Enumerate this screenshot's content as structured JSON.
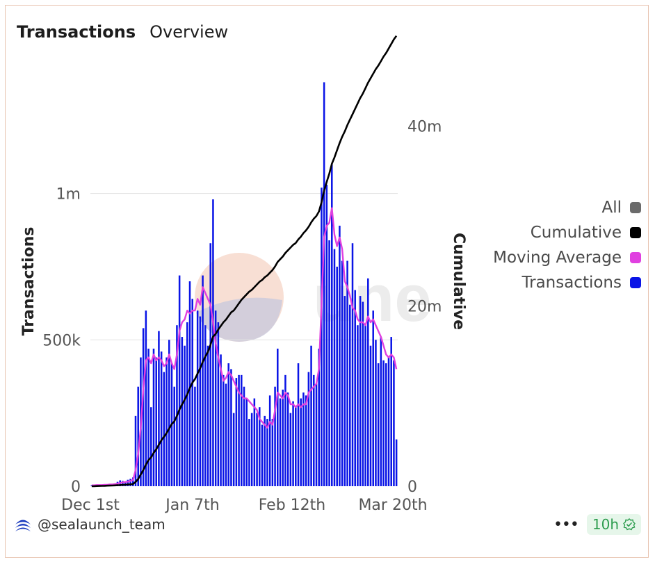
{
  "header": {
    "title": "Transactions",
    "subtitle": "Overview"
  },
  "legend": [
    {
      "label": "All",
      "color": "#6b6b6b"
    },
    {
      "label": "Cumulative",
      "color": "#000000"
    },
    {
      "label": "Moving Average",
      "color": "#e040e0"
    },
    {
      "label": "Transactions",
      "color": "#0a14e6"
    }
  ],
  "footer": {
    "author": "@sealaunch_team",
    "more_label": "•••",
    "age_label": "10h",
    "age_color": "#2e9d4f"
  },
  "watermark": "Dune",
  "chart_data": {
    "type": "bar",
    "title": "Transactions",
    "x_tick_labels": [
      "Dec 1st",
      "Jan 7th",
      "Feb 12th",
      "Mar 20th"
    ],
    "ylabel": "Transactions",
    "y2label": "Cumulative",
    "ylim": [
      0,
      1400000
    ],
    "y2lim": [
      0,
      45500000
    ],
    "y_ticks": [
      {
        "value": 0,
        "label": "0"
      },
      {
        "value": 500000,
        "label": "500k"
      },
      {
        "value": 1000000,
        "label": "1m"
      }
    ],
    "y2_ticks": [
      {
        "value": 0,
        "label": "0"
      },
      {
        "value": 20000000,
        "label": "20m"
      },
      {
        "value": 40000000,
        "label": "40m"
      }
    ],
    "grid": true,
    "legend_position": "right",
    "series": [
      {
        "name": "Transactions",
        "kind": "bar",
        "color": "#0a14e6",
        "values": [
          3000,
          3000,
          4000,
          5000,
          5000,
          6000,
          6000,
          7000,
          7000,
          8000,
          15000,
          20000,
          18000,
          15000,
          22000,
          25000,
          30000,
          240000,
          340000,
          440000,
          540000,
          600000,
          470000,
          270000,
          470000,
          440000,
          530000,
          460000,
          390000,
          440000,
          500000,
          420000,
          340000,
          550000,
          720000,
          510000,
          480000,
          560000,
          700000,
          640000,
          340000,
          600000,
          580000,
          720000,
          550000,
          480000,
          830000,
          980000,
          600000,
          560000,
          450000,
          380000,
          350000,
          420000,
          400000,
          250000,
          370000,
          380000,
          380000,
          340000,
          300000,
          230000,
          250000,
          300000,
          250000,
          270000,
          210000,
          240000,
          230000,
          310000,
          230000,
          340000,
          470000,
          300000,
          330000,
          380000,
          320000,
          250000,
          290000,
          270000,
          420000,
          300000,
          320000,
          310000,
          390000,
          480000,
          380000,
          350000,
          470000,
          1020000,
          1380000,
          1030000,
          840000,
          1100000,
          810000,
          750000,
          890000,
          770000,
          650000,
          770000,
          620000,
          830000,
          670000,
          550000,
          650000,
          630000,
          550000,
          710000,
          480000,
          600000,
          500000,
          420000,
          510000,
          430000,
          420000,
          440000,
          510000,
          430000,
          160000
        ]
      },
      {
        "name": "Moving Average",
        "kind": "line",
        "color": "#e040e0",
        "values": [
          3000,
          3000,
          4000,
          4000,
          4000,
          5000,
          5000,
          6000,
          6000,
          7000,
          9000,
          11000,
          13000,
          14000,
          16000,
          18000,
          21000,
          55000,
          110000,
          200000,
          330000,
          430000,
          440000,
          420000,
          450000,
          430000,
          440000,
          430000,
          410000,
          420000,
          450000,
          420000,
          400000,
          450000,
          530000,
          560000,
          570000,
          600000,
          590000,
          600000,
          600000,
          640000,
          620000,
          680000,
          660000,
          640000,
          620000,
          560000,
          490000,
          440000,
          400000,
          360000,
          370000,
          390000,
          380000,
          360000,
          340000,
          320000,
          310000,
          300000,
          300000,
          290000,
          280000,
          270000,
          260000,
          230000,
          220000,
          210000,
          200000,
          220000,
          210000,
          260000,
          320000,
          310000,
          300000,
          320000,
          310000,
          280000,
          280000,
          270000,
          280000,
          270000,
          280000,
          280000,
          320000,
          330000,
          340000,
          350000,
          400000,
          620000,
          850000,
          890000,
          900000,
          950000,
          860000,
          820000,
          850000,
          810000,
          700000,
          680000,
          650000,
          610000,
          600000,
          570000,
          560000,
          560000,
          550000,
          580000,
          560000,
          570000,
          550000,
          530000,
          510000,
          480000,
          450000,
          440000,
          450000,
          440000,
          400000
        ]
      },
      {
        "name": "Cumulative",
        "kind": "line",
        "axis": "right",
        "color": "#000000",
        "values": [
          0,
          10000,
          20000,
          30000,
          40000,
          50000,
          60000,
          70000,
          80000,
          90000,
          105000,
          125000,
          145000,
          165000,
          185000,
          210000,
          240000,
          470000,
          800000,
          1300000,
          1800000,
          2400000,
          2900000,
          3200000,
          3700000,
          4100000,
          4600000,
          5100000,
          5500000,
          5900000,
          6400000,
          6900000,
          7200000,
          7800000,
          8500000,
          9100000,
          9600000,
          10200000,
          10900000,
          11500000,
          11900000,
          12500000,
          13100000,
          13800000,
          14400000,
          14900000,
          15700000,
          16600000,
          16900000,
          17400000,
          17800000,
          18200000,
          18500000,
          18900000,
          19300000,
          19500000,
          19900000,
          20300000,
          20700000,
          21000000,
          21300000,
          21600000,
          21800000,
          22100000,
          22400000,
          22700000,
          22900000,
          23200000,
          23400000,
          23700000,
          24000000,
          24400000,
          24900000,
          25200000,
          25500000,
          25900000,
          26200000,
          26500000,
          26800000,
          27000000,
          27400000,
          27700000,
          28100000,
          28400000,
          28800000,
          29300000,
          29700000,
          30000000,
          30500000,
          31500000,
          32800000,
          33800000,
          34700000,
          35800000,
          36500000,
          37300000,
          38100000,
          38800000,
          39400000,
          40100000,
          40700000,
          41300000,
          41900000,
          42500000,
          43100000,
          43600000,
          44200000,
          44800000,
          45300000,
          45800000,
          46300000,
          46700000,
          47200000,
          47700000,
          48100000,
          48600000,
          49100000,
          49600000,
          50000000
        ]
      }
    ]
  }
}
